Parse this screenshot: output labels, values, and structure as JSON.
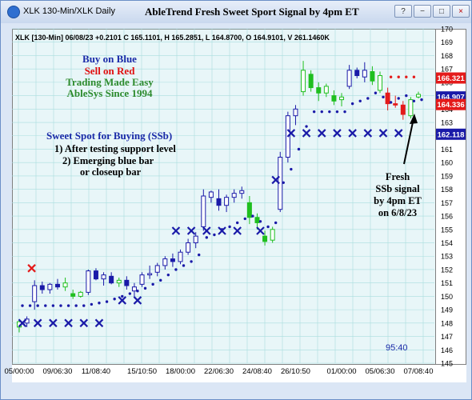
{
  "window": {
    "title": "XLK 130-Min/XLK Daily",
    "chart_title": "AbleTrend Fresh Sweet Sport Signal by 4pm ET",
    "controls": [
      "?",
      "−",
      "□",
      "×"
    ]
  },
  "header_line": "XLK [130-Min] 06/08/23  +0.2101  C 165.1101, H 165.2851, L 164.8700, O 164.9101, V 261.1460K",
  "annotations": {
    "buy_on_blue": "Buy on Blue",
    "sell_on_red": "Sell on Red",
    "trading_made_easy": "Trading Made Easy",
    "ablesys": "AbleSys Since 1994",
    "ssb_title": "Sweet Spot for Buying (SSb)",
    "ssb_rule1": "1) After testing support level",
    "ssb_rule2": "2) Emerging blue bar",
    "ssb_rule3": "or closeup bar",
    "fresh_1": "Fresh",
    "fresh_2": "SSb signal",
    "fresh_3": "by 4pm ET",
    "fresh_4": "on 6/8/23",
    "countdown": "95:40"
  },
  "colors": {
    "blue": "#1a1aa8",
    "red": "#e41a1a",
    "green": "#1fbf1f",
    "annotation_blue": "#1a2aa8",
    "annotation_red": "#e01010",
    "annotation_green": "#2e8b2e",
    "grid": "#a9dede",
    "background": "#e8f6f8"
  },
  "chart_data": {
    "type": "candlestick",
    "title": "AbleTrend Fresh Sweet Sport Signal by 4pm ET",
    "ylim": [
      145,
      170
    ],
    "y_ticks": [
      145,
      146,
      147,
      148,
      149,
      150,
      151,
      152,
      153,
      154,
      155,
      156,
      157,
      158,
      159,
      160,
      161,
      162,
      163,
      164,
      165,
      166,
      167,
      168,
      169,
      170
    ],
    "x_tick_labels": [
      "05/00:00",
      "09/06:30",
      "11/08:40",
      "15/10:50",
      "18/00:00",
      "22/06:30",
      "24/08:40",
      "26/10:50",
      "01/00:00",
      "05/06:30",
      "07/08:40"
    ],
    "price_tags": [
      {
        "value": "166.321",
        "color": "red"
      },
      {
        "value": "164.907",
        "color": "blue"
      },
      {
        "value": "164.336",
        "color": "red"
      },
      {
        "value": "162.118",
        "color": "blue"
      }
    ],
    "bars": [
      {
        "o": 147.7,
        "h": 148.3,
        "l": 147.3,
        "c": 148.1,
        "color": "green"
      },
      {
        "o": 148.0,
        "h": 148.5,
        "l": 147.7,
        "c": 148.3,
        "color": "blue"
      },
      {
        "o": 149.6,
        "h": 151.2,
        "l": 149.0,
        "c": 150.8,
        "color": "blue"
      },
      {
        "o": 150.8,
        "h": 151.1,
        "l": 150.2,
        "c": 150.5,
        "color": "blue"
      },
      {
        "o": 150.5,
        "h": 151.0,
        "l": 150.2,
        "c": 150.9,
        "color": "blue"
      },
      {
        "o": 150.9,
        "h": 151.3,
        "l": 150.5,
        "c": 150.7,
        "color": "blue"
      },
      {
        "o": 150.7,
        "h": 151.4,
        "l": 150.4,
        "c": 151.0,
        "color": "green"
      },
      {
        "o": 150.2,
        "h": 150.5,
        "l": 149.8,
        "c": 150.0,
        "color": "green"
      },
      {
        "o": 150.0,
        "h": 150.4,
        "l": 149.9,
        "c": 150.3,
        "color": "green"
      },
      {
        "o": 150.3,
        "h": 152.0,
        "l": 150.1,
        "c": 151.9,
        "color": "blue"
      },
      {
        "o": 151.9,
        "h": 152.1,
        "l": 151.2,
        "c": 151.3,
        "color": "blue"
      },
      {
        "o": 151.3,
        "h": 151.8,
        "l": 150.8,
        "c": 151.6,
        "color": "blue"
      },
      {
        "o": 151.5,
        "h": 151.8,
        "l": 150.9,
        "c": 151.0,
        "color": "blue"
      },
      {
        "o": 151.0,
        "h": 151.4,
        "l": 150.7,
        "c": 151.2,
        "color": "green"
      },
      {
        "o": 151.2,
        "h": 151.5,
        "l": 150.5,
        "c": 150.8,
        "color": "blue"
      },
      {
        "o": 150.4,
        "h": 151.0,
        "l": 149.9,
        "c": 150.7,
        "color": "blue"
      },
      {
        "o": 150.9,
        "h": 151.8,
        "l": 150.7,
        "c": 151.6,
        "color": "blue"
      },
      {
        "o": 151.6,
        "h": 152.3,
        "l": 151.3,
        "c": 151.7,
        "color": "blue"
      },
      {
        "o": 151.8,
        "h": 152.5,
        "l": 151.5,
        "c": 152.3,
        "color": "blue"
      },
      {
        "o": 152.3,
        "h": 153.0,
        "l": 152.0,
        "c": 152.8,
        "color": "blue"
      },
      {
        "o": 152.8,
        "h": 153.2,
        "l": 152.2,
        "c": 152.6,
        "color": "blue"
      },
      {
        "o": 152.6,
        "h": 153.5,
        "l": 152.4,
        "c": 153.3,
        "color": "blue"
      },
      {
        "o": 153.3,
        "h": 154.3,
        "l": 153.1,
        "c": 154.0,
        "color": "blue"
      },
      {
        "o": 154.0,
        "h": 154.8,
        "l": 153.6,
        "c": 154.5,
        "color": "blue"
      },
      {
        "o": 155.2,
        "h": 158.0,
        "l": 154.9,
        "c": 157.5,
        "color": "blue"
      },
      {
        "o": 157.4,
        "h": 157.9,
        "l": 157.0,
        "c": 157.8,
        "color": "blue"
      },
      {
        "o": 157.3,
        "h": 158.0,
        "l": 156.4,
        "c": 156.8,
        "color": "blue"
      },
      {
        "o": 156.8,
        "h": 157.6,
        "l": 156.3,
        "c": 157.4,
        "color": "blue"
      },
      {
        "o": 157.4,
        "h": 158.0,
        "l": 157.0,
        "c": 157.7,
        "color": "blue"
      },
      {
        "o": 157.7,
        "h": 158.2,
        "l": 157.3,
        "c": 157.9,
        "color": "blue"
      },
      {
        "o": 157.0,
        "h": 157.5,
        "l": 155.4,
        "c": 155.9,
        "color": "green"
      },
      {
        "o": 155.9,
        "h": 156.2,
        "l": 155.0,
        "c": 155.5,
        "color": "green"
      },
      {
        "o": 154.5,
        "h": 154.9,
        "l": 153.8,
        "c": 154.1,
        "color": "green"
      },
      {
        "o": 154.2,
        "h": 155.2,
        "l": 154.0,
        "c": 155.0,
        "color": "green"
      },
      {
        "o": 156.5,
        "h": 160.8,
        "l": 156.3,
        "c": 160.4,
        "color": "blue"
      },
      {
        "o": 160.4,
        "h": 163.8,
        "l": 160.0,
        "c": 163.5,
        "color": "blue"
      },
      {
        "o": 163.5,
        "h": 164.3,
        "l": 162.8,
        "c": 164.0,
        "color": "blue"
      },
      {
        "o": 165.3,
        "h": 167.6,
        "l": 165.0,
        "c": 166.9,
        "color": "green"
      },
      {
        "o": 166.6,
        "h": 166.9,
        "l": 165.3,
        "c": 165.6,
        "color": "green"
      },
      {
        "o": 165.6,
        "h": 166.0,
        "l": 164.6,
        "c": 165.2,
        "color": "green"
      },
      {
        "o": 165.2,
        "h": 165.9,
        "l": 164.9,
        "c": 165.7,
        "color": "green"
      },
      {
        "o": 165.0,
        "h": 165.4,
        "l": 164.3,
        "c": 164.6,
        "color": "green"
      },
      {
        "o": 164.7,
        "h": 165.2,
        "l": 164.2,
        "c": 164.9,
        "color": "green"
      },
      {
        "o": 165.7,
        "h": 167.3,
        "l": 165.5,
        "c": 166.9,
        "color": "blue"
      },
      {
        "o": 166.9,
        "h": 167.1,
        "l": 166.3,
        "c": 166.5,
        "color": "blue"
      },
      {
        "o": 166.4,
        "h": 167.5,
        "l": 166.0,
        "c": 166.9,
        "color": "blue"
      },
      {
        "o": 166.8,
        "h": 167.2,
        "l": 165.8,
        "c": 166.1,
        "color": "green"
      },
      {
        "o": 165.4,
        "h": 166.8,
        "l": 165.2,
        "c": 166.5,
        "color": "green"
      },
      {
        "o": 165.2,
        "h": 165.6,
        "l": 163.9,
        "c": 164.4,
        "color": "red"
      },
      {
        "o": 164.4,
        "h": 165.0,
        "l": 164.1,
        "c": 164.3,
        "color": "red"
      },
      {
        "o": 164.3,
        "h": 164.6,
        "l": 163.2,
        "c": 163.6,
        "color": "red"
      },
      {
        "o": 163.5,
        "h": 164.9,
        "l": 163.3,
        "c": 164.7,
        "color": "green"
      },
      {
        "o": 164.9,
        "h": 165.3,
        "l": 164.8,
        "c": 165.1,
        "color": "green"
      }
    ],
    "support_dots": [
      149.3,
      149.3,
      149.3,
      149.3,
      149.3,
      149.3,
      149.3,
      149.3,
      149.3,
      149.4,
      149.5,
      149.6,
      149.8,
      150.0,
      150.2,
      150.4,
      150.6,
      150.9,
      151.2,
      151.6,
      152.0,
      152.3,
      152.6,
      153.1,
      154.4,
      154.6,
      155.0,
      155.2,
      155.5,
      155.8,
      156.0,
      155.6,
      155.2,
      155.5,
      158.5,
      159.5,
      161.0,
      162.7,
      163.8,
      163.8,
      163.8,
      163.8,
      163.8,
      164.4,
      164.6,
      164.8,
      165.2,
      164.9,
      164.5,
      164.8,
      165.0,
      164.6,
      164.7
    ],
    "stop_marks": [
      {
        "bar": 0,
        "value": 148.0
      },
      {
        "bar": 2,
        "value": 148.0
      },
      {
        "bar": 4,
        "value": 148.0
      },
      {
        "bar": 6,
        "value": 148.0
      },
      {
        "bar": 8,
        "value": 148.0
      },
      {
        "bar": 10,
        "value": 148.0
      },
      {
        "bar": 13,
        "value": 149.7
      },
      {
        "bar": 15,
        "value": 149.7
      },
      {
        "bar": 20,
        "value": 154.9
      },
      {
        "bar": 22,
        "value": 154.9
      },
      {
        "bar": 24,
        "value": 154.9
      },
      {
        "bar": 26,
        "value": 154.9
      },
      {
        "bar": 28,
        "value": 154.9
      },
      {
        "bar": 31,
        "value": 154.9
      },
      {
        "bar": 33,
        "value": 158.7
      },
      {
        "bar": 35,
        "value": 162.2
      },
      {
        "bar": 37,
        "value": 162.2
      },
      {
        "bar": 39,
        "value": 162.2
      },
      {
        "bar": 41,
        "value": 162.2
      },
      {
        "bar": 43,
        "value": 162.2
      },
      {
        "bar": 45,
        "value": 162.2
      },
      {
        "bar": 47,
        "value": 162.2
      },
      {
        "bar": 49,
        "value": 162.2
      }
    ],
    "sell_mark": {
      "bar": 1,
      "value": 152.1
    },
    "resistance_dots": [
      {
        "bar": 48,
        "value": 166.4
      },
      {
        "bar": 49,
        "value": 166.4
      },
      {
        "bar": 50,
        "value": 166.4
      },
      {
        "bar": 51,
        "value": 166.4
      }
    ],
    "grid": true
  }
}
